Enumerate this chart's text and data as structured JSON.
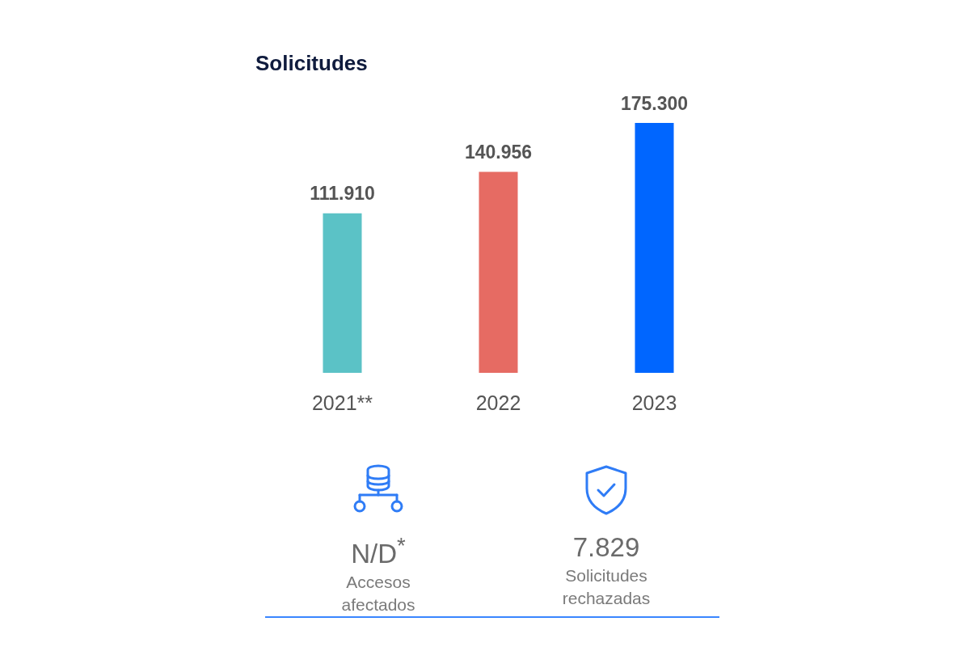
{
  "chart_data": [
    {
      "type": "bar",
      "title": "Solicitudes",
      "categories": [
        "2021**",
        "2022",
        "2023"
      ],
      "values": [
        111910,
        140956,
        175300
      ],
      "colors": [
        "#5bc2c6",
        "#e66b63",
        "#0066ff"
      ],
      "value_labels": [
        "111.910",
        "140.956",
        "175.300"
      ],
      "tick_labels": "x"
    },
    {
      "type": "other",
      "annotations": [
        "N/D$^{*}$",
        "Accesos afectados",
        "7.829",
        "Solicitudes rechazadas"
      ]
    }
  ]
}
